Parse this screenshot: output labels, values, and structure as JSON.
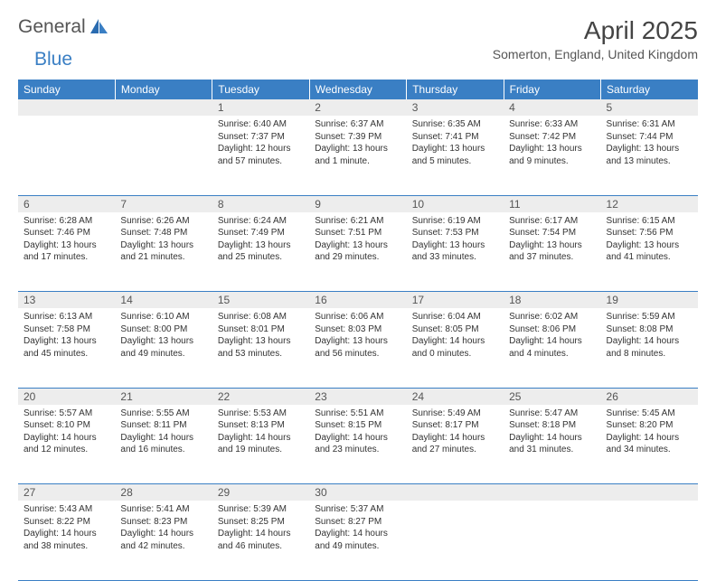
{
  "brand": {
    "part1": "General",
    "part2": "Blue"
  },
  "title": "April 2025",
  "location": "Somerton, England, United Kingdom",
  "colors": {
    "header_bg": "#3a7fc4",
    "header_text": "#ffffff",
    "daynum_bg": "#ededed",
    "border": "#3a7fc4",
    "text": "#333333"
  },
  "weekdays": [
    "Sunday",
    "Monday",
    "Tuesday",
    "Wednesday",
    "Thursday",
    "Friday",
    "Saturday"
  ],
  "weeks": [
    [
      null,
      null,
      {
        "n": "1",
        "sr": "6:40 AM",
        "ss": "7:37 PM",
        "dl": "12 hours and 57 minutes."
      },
      {
        "n": "2",
        "sr": "6:37 AM",
        "ss": "7:39 PM",
        "dl": "13 hours and 1 minute."
      },
      {
        "n": "3",
        "sr": "6:35 AM",
        "ss": "7:41 PM",
        "dl": "13 hours and 5 minutes."
      },
      {
        "n": "4",
        "sr": "6:33 AM",
        "ss": "7:42 PM",
        "dl": "13 hours and 9 minutes."
      },
      {
        "n": "5",
        "sr": "6:31 AM",
        "ss": "7:44 PM",
        "dl": "13 hours and 13 minutes."
      }
    ],
    [
      {
        "n": "6",
        "sr": "6:28 AM",
        "ss": "7:46 PM",
        "dl": "13 hours and 17 minutes."
      },
      {
        "n": "7",
        "sr": "6:26 AM",
        "ss": "7:48 PM",
        "dl": "13 hours and 21 minutes."
      },
      {
        "n": "8",
        "sr": "6:24 AM",
        "ss": "7:49 PM",
        "dl": "13 hours and 25 minutes."
      },
      {
        "n": "9",
        "sr": "6:21 AM",
        "ss": "7:51 PM",
        "dl": "13 hours and 29 minutes."
      },
      {
        "n": "10",
        "sr": "6:19 AM",
        "ss": "7:53 PM",
        "dl": "13 hours and 33 minutes."
      },
      {
        "n": "11",
        "sr": "6:17 AM",
        "ss": "7:54 PM",
        "dl": "13 hours and 37 minutes."
      },
      {
        "n": "12",
        "sr": "6:15 AM",
        "ss": "7:56 PM",
        "dl": "13 hours and 41 minutes."
      }
    ],
    [
      {
        "n": "13",
        "sr": "6:13 AM",
        "ss": "7:58 PM",
        "dl": "13 hours and 45 minutes."
      },
      {
        "n": "14",
        "sr": "6:10 AM",
        "ss": "8:00 PM",
        "dl": "13 hours and 49 minutes."
      },
      {
        "n": "15",
        "sr": "6:08 AM",
        "ss": "8:01 PM",
        "dl": "13 hours and 53 minutes."
      },
      {
        "n": "16",
        "sr": "6:06 AM",
        "ss": "8:03 PM",
        "dl": "13 hours and 56 minutes."
      },
      {
        "n": "17",
        "sr": "6:04 AM",
        "ss": "8:05 PM",
        "dl": "14 hours and 0 minutes."
      },
      {
        "n": "18",
        "sr": "6:02 AM",
        "ss": "8:06 PM",
        "dl": "14 hours and 4 minutes."
      },
      {
        "n": "19",
        "sr": "5:59 AM",
        "ss": "8:08 PM",
        "dl": "14 hours and 8 minutes."
      }
    ],
    [
      {
        "n": "20",
        "sr": "5:57 AM",
        "ss": "8:10 PM",
        "dl": "14 hours and 12 minutes."
      },
      {
        "n": "21",
        "sr": "5:55 AM",
        "ss": "8:11 PM",
        "dl": "14 hours and 16 minutes."
      },
      {
        "n": "22",
        "sr": "5:53 AM",
        "ss": "8:13 PM",
        "dl": "14 hours and 19 minutes."
      },
      {
        "n": "23",
        "sr": "5:51 AM",
        "ss": "8:15 PM",
        "dl": "14 hours and 23 minutes."
      },
      {
        "n": "24",
        "sr": "5:49 AM",
        "ss": "8:17 PM",
        "dl": "14 hours and 27 minutes."
      },
      {
        "n": "25",
        "sr": "5:47 AM",
        "ss": "8:18 PM",
        "dl": "14 hours and 31 minutes."
      },
      {
        "n": "26",
        "sr": "5:45 AM",
        "ss": "8:20 PM",
        "dl": "14 hours and 34 minutes."
      }
    ],
    [
      {
        "n": "27",
        "sr": "5:43 AM",
        "ss": "8:22 PM",
        "dl": "14 hours and 38 minutes."
      },
      {
        "n": "28",
        "sr": "5:41 AM",
        "ss": "8:23 PM",
        "dl": "14 hours and 42 minutes."
      },
      {
        "n": "29",
        "sr": "5:39 AM",
        "ss": "8:25 PM",
        "dl": "14 hours and 46 minutes."
      },
      {
        "n": "30",
        "sr": "5:37 AM",
        "ss": "8:27 PM",
        "dl": "14 hours and 49 minutes."
      },
      null,
      null,
      null
    ]
  ],
  "labels": {
    "sunrise": "Sunrise:",
    "sunset": "Sunset:",
    "daylight": "Daylight:"
  }
}
